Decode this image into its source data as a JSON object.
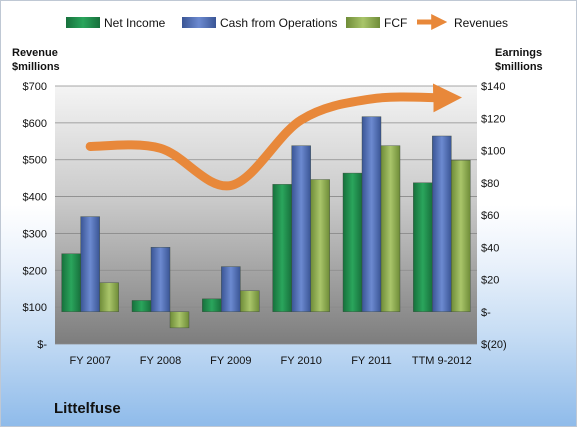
{
  "chart_data": {
    "type": "bar",
    "company": "Littelfuse",
    "categories": [
      "FY 2007",
      "FY 2008",
      "FY 2009",
      "FY 2010",
      "FY 2011",
      "TTM 9-2012"
    ],
    "left_axis": {
      "title_line1": "Revenue",
      "title_line2": "$millions",
      "range": [
        0,
        700
      ],
      "ticks": [
        {
          "value": 0,
          "label": "$-"
        },
        {
          "value": 100,
          "label": "$100"
        },
        {
          "value": 200,
          "label": "$200"
        },
        {
          "value": 300,
          "label": "$300"
        },
        {
          "value": 400,
          "label": "$400"
        },
        {
          "value": 500,
          "label": "$500"
        },
        {
          "value": 600,
          "label": "$600"
        },
        {
          "value": 700,
          "label": "$700"
        }
      ]
    },
    "right_axis": {
      "title_line1": "Earnings",
      "title_line2": "$millions",
      "range": [
        -20,
        140
      ],
      "ticks": [
        {
          "value": -20,
          "label": "$(20)"
        },
        {
          "value": 0,
          "label": "$-"
        },
        {
          "value": 20,
          "label": "$20"
        },
        {
          "value": 40,
          "label": "$40"
        },
        {
          "value": 60,
          "label": "$60"
        },
        {
          "value": 80,
          "label": "$80"
        },
        {
          "value": 100,
          "label": "$100"
        },
        {
          "value": 120,
          "label": "$120"
        },
        {
          "value": 140,
          "label": "$140"
        }
      ]
    },
    "series": [
      {
        "name": "Net Income",
        "axis": "right",
        "kind": "bar",
        "color": "#1f8a4c",
        "values": [
          36,
          7,
          8,
          79,
          86,
          80
        ]
      },
      {
        "name": "Cash from Operations",
        "axis": "right",
        "kind": "bar",
        "color": "#4f6fb8",
        "values": [
          59,
          40,
          28,
          103,
          121,
          109
        ]
      },
      {
        "name": "FCF",
        "axis": "right",
        "kind": "bar",
        "color": "#8fb04f",
        "values": [
          18,
          -10,
          13,
          82,
          103,
          94
        ]
      },
      {
        "name": "Revenues",
        "axis": "left",
        "kind": "line",
        "color": "#e8883a",
        "values": [
          536,
          531,
          430,
          608,
          665,
          668
        ]
      }
    ],
    "grid": true,
    "legend_position": "top"
  }
}
